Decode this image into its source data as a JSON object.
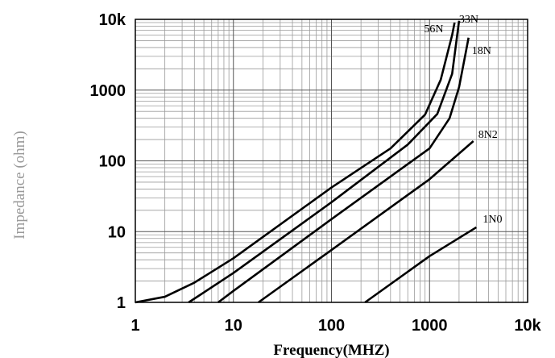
{
  "chart_data": {
    "type": "line",
    "xlabel": "Frequency(MHZ)",
    "ylabel": "Impedance (ohm)",
    "x_scale": "log",
    "y_scale": "log",
    "xlim": [
      1,
      10000
    ],
    "ylim": [
      1,
      10000
    ],
    "x_ticks": [
      {
        "value": 1,
        "label": "1"
      },
      {
        "value": 10,
        "label": "10"
      },
      {
        "value": 100,
        "label": "100"
      },
      {
        "value": 1000,
        "label": "1000"
      },
      {
        "value": 10000,
        "label": "10k"
      }
    ],
    "y_ticks": [
      {
        "value": 1,
        "label": "1"
      },
      {
        "value": 10,
        "label": "10"
      },
      {
        "value": 100,
        "label": "100"
      },
      {
        "value": 1000,
        "label": "1000"
      },
      {
        "value": 10000,
        "label": "10k"
      }
    ],
    "grid": true,
    "line_color": "#000000",
    "series": [
      {
        "name": "56N",
        "points": [
          [
            1,
            1
          ],
          [
            2,
            1.2
          ],
          [
            4,
            1.9
          ],
          [
            10,
            4.2
          ],
          [
            100,
            42
          ],
          [
            400,
            150
          ],
          [
            900,
            450
          ],
          [
            1300,
            1400
          ],
          [
            1700,
            6000
          ],
          [
            1800,
            9000
          ]
        ]
      },
      {
        "name": "33N",
        "points": [
          [
            3.5,
            1
          ],
          [
            10,
            2.6
          ],
          [
            100,
            26
          ],
          [
            600,
            170
          ],
          [
            1200,
            460
          ],
          [
            1700,
            1700
          ],
          [
            2000,
            9500
          ]
        ]
      },
      {
        "name": "18N",
        "points": [
          [
            7,
            1
          ],
          [
            10,
            1.45
          ],
          [
            100,
            15
          ],
          [
            1000,
            150
          ],
          [
            1600,
            400
          ],
          [
            2000,
            1100
          ],
          [
            2300,
            3000
          ],
          [
            2500,
            5500
          ]
        ]
      },
      {
        "name": "8N2",
        "points": [
          [
            18,
            1
          ],
          [
            100,
            5.5
          ],
          [
            1000,
            55
          ],
          [
            2800,
            190
          ]
        ]
      },
      {
        "name": "1N0",
        "points": [
          [
            220,
            1
          ],
          [
            1000,
            4.5
          ],
          [
            3000,
            11.5
          ]
        ]
      }
    ]
  }
}
